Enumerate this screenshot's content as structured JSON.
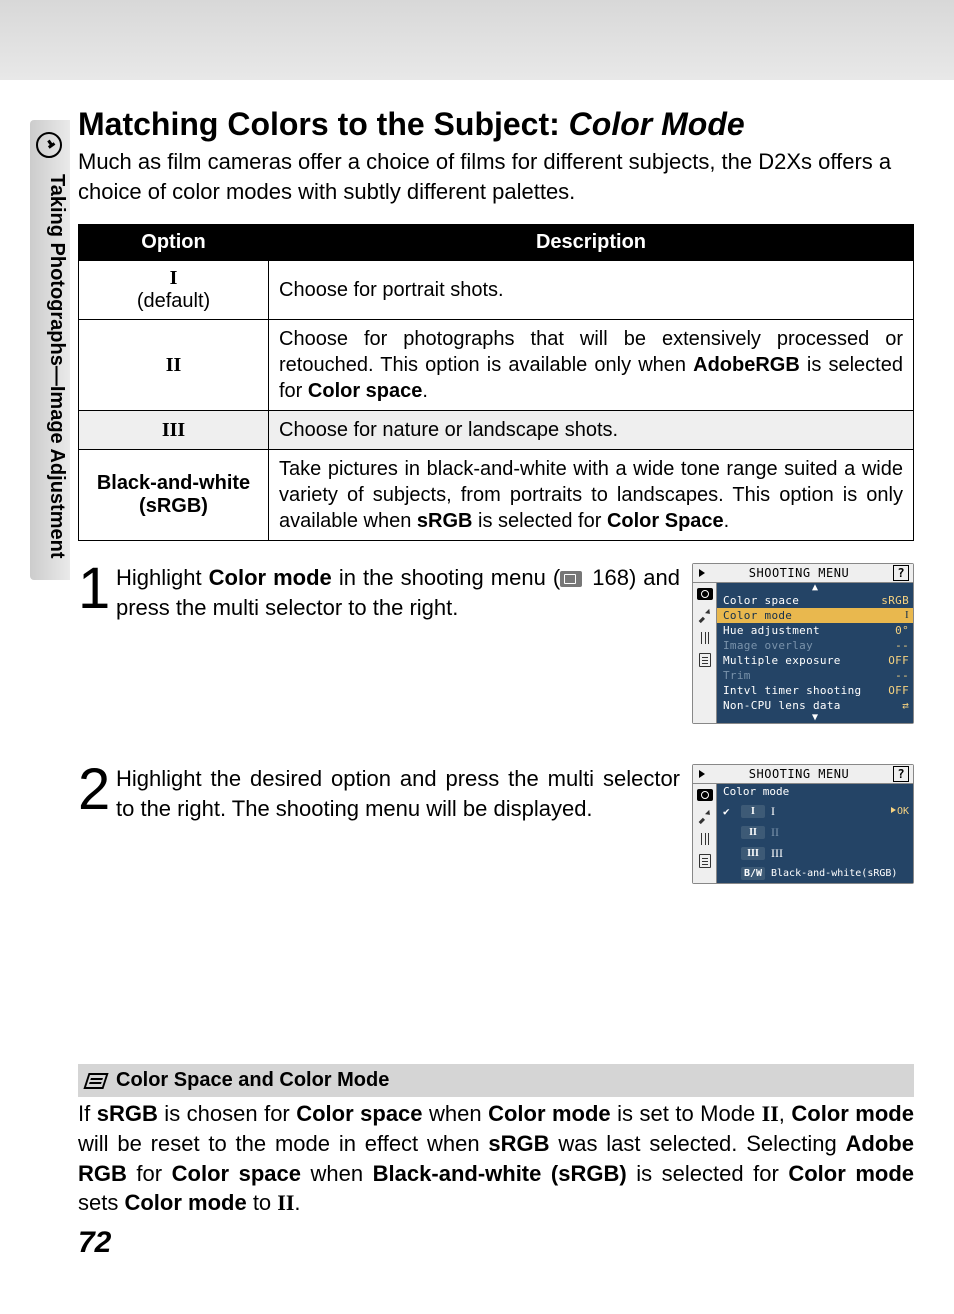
{
  "sidebar_label": "Taking Photographs—Image Adjustment",
  "title_main": "Matching Colors to the Subject: ",
  "title_ital": "Color Mode",
  "intro": "Much as film cameras offer a choice of films for different subjects, the D2Xs offers a choice of color modes with subtly different palettes.",
  "table": {
    "h_option": "Option",
    "h_desc": "Description",
    "rows": [
      {
        "opt": "I",
        "sub": "(default)",
        "desc_html": "Choose for portrait shots.",
        "shade": false
      },
      {
        "opt": "II",
        "sub": "",
        "desc_html": "Choose for photographs that will be extensively processed or retouched.  This option is available only when <b>AdobeRGB</b> is selected for <b>Color space</b>.",
        "shade": false
      },
      {
        "opt": "III",
        "sub": "",
        "desc_html": "Choose for nature or landscape shots.",
        "shade": true
      },
      {
        "opt": "Black-and-white (sRGB)",
        "sub": "",
        "desc_html": "Take pictures in black-and-white with a wide tone range suited a wide variety of subjects, from portraits to landscapes.  This option is only available when <b>sRGB</b> is selected for <b>Color Space</b>.",
        "shade": false,
        "sans": true
      }
    ]
  },
  "step1_html": "Highlight <b>Color mode</b> in the shooting menu (<span class='pgref'></span> 168) and press the multi selector to the right.",
  "step2_html": "Highlight the desired option and press the multi selector to the right.  The shooting menu will be displayed.",
  "screen1": {
    "title": "SHOOTING MENU",
    "items": [
      {
        "k": "Color space",
        "v": "sRGB"
      },
      {
        "k": "Color mode",
        "v": "I",
        "hi": true,
        "serif_v": true
      },
      {
        "k": "Hue adjustment",
        "v": "0°"
      },
      {
        "k": "Image overlay",
        "v": "--",
        "dim": true
      },
      {
        "k": "Multiple exposure",
        "v": "OFF"
      },
      {
        "k": "Trim",
        "v": "--",
        "dim": true
      },
      {
        "k": "Intvl timer shooting",
        "v": "OFF"
      },
      {
        "k": "Non-CPU lens data",
        "v": "⇄"
      }
    ]
  },
  "screen2": {
    "title": "SHOOTING MENU",
    "subtitle": "Color mode",
    "ok": "OK",
    "items": [
      {
        "ico": "I",
        "lbl": "I",
        "sel": true
      },
      {
        "ico": "II",
        "lbl": "II",
        "dim": true
      },
      {
        "ico": "III",
        "lbl": "III"
      },
      {
        "ico": "B/W",
        "lbl": "Black-and-white(sRGB)"
      }
    ]
  },
  "note_title": "Color Space and Color Mode",
  "note_html": "If <b>sRGB</b> is chosen for <b>Color space</b> when <b>Color mode</b> is set to Mode <span class='serif-b'>II</span>, <b>Color mode</b> will be reset to the mode in effect when <b>sRGB</b> was last selected.  Selecting <b>Adobe RGB</b> for <b>Color space</b> when <b>Black-and-white (sRGB)</b> is selected for <b>Color mode</b> sets <b>Color mode</b> to <span class='serif-b'>II</span>.",
  "page_number": "72"
}
